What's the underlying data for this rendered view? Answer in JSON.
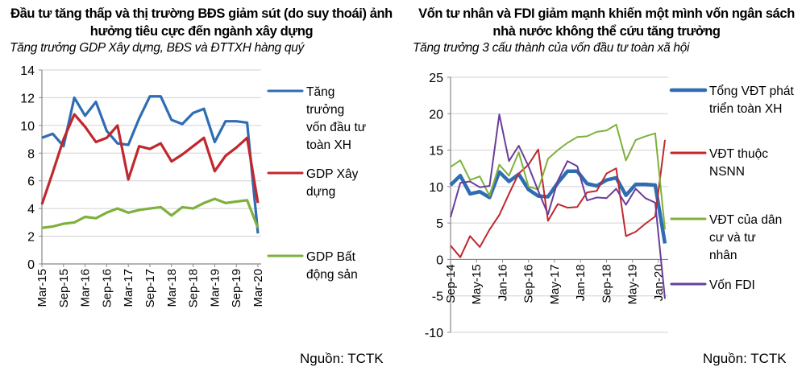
{
  "left": {
    "title": "Đầu tư tăng thấp và thị trường BĐS giảm sút (do suy thoái) ảnh hưởng tiêu cực đến ngành xây dựng",
    "subtitle": "Tăng trưởng GDP Xây dựng, BĐS và  ĐTTXH hàng quý",
    "source": "Nguồn: TCTK"
  },
  "right": {
    "title": "Vốn tư nhân và FDI giảm mạnh khiến một mình vốn ngân sách nhà nước không thể cứu tăng trưởng",
    "subtitle": "Tăng trưởng 3 cấu thành của vốn đầu tư toàn xã hội",
    "source": "Nguồn: TCTK"
  },
  "chart_data": [
    {
      "type": "line",
      "x": [
        "Mar-15",
        "Jun-15",
        "Sep-15",
        "Dec-15",
        "Mar-16",
        "Jun-16",
        "Sep-16",
        "Dec-16",
        "Mar-17",
        "Jun-17",
        "Sep-17",
        "Dec-17",
        "Mar-18",
        "Jun-18",
        "Sep-18",
        "Dec-18",
        "Mar-19",
        "Jun-19",
        "Sep-19",
        "Dec-19",
        "Mar-20"
      ],
      "tick_labels": [
        "Mar-15",
        "Sep-15",
        "Mar-16",
        "Sep-16",
        "Mar-17",
        "Sep-17",
        "Mar-18",
        "Sep-18",
        "Mar-19",
        "Sep-19",
        "Mar-20"
      ],
      "ylim": [
        0,
        14
      ],
      "yticks": [
        0,
        2,
        4,
        6,
        8,
        10,
        12,
        14
      ],
      "grid": true,
      "legend": "right",
      "series": [
        {
          "name": "Tăng trưởng vốn đầu tư toàn XH",
          "color": "#2e6db4",
          "values": [
            9.1,
            9.4,
            8.5,
            12.0,
            10.7,
            11.7,
            9.6,
            8.7,
            8.6,
            10.5,
            12.1,
            12.1,
            10.4,
            10.1,
            10.9,
            11.2,
            8.8,
            10.3,
            10.3,
            10.2,
            2.2
          ]
        },
        {
          "name": "GDP Xây dựng",
          "color": "#c0282e",
          "values": [
            4.3,
            6.6,
            9.0,
            10.8,
            9.9,
            8.8,
            9.1,
            10.0,
            6.1,
            8.5,
            8.3,
            8.7,
            7.4,
            7.9,
            8.5,
            9.1,
            6.7,
            7.8,
            8.4,
            9.1,
            4.4
          ]
        },
        {
          "name": "GDP Bất động sản",
          "color": "#7fb03c",
          "values": [
            2.6,
            2.7,
            2.9,
            3.0,
            3.4,
            3.3,
            3.7,
            4.0,
            3.7,
            3.9,
            4.0,
            4.1,
            3.5,
            4.1,
            4.0,
            4.4,
            4.7,
            4.4,
            4.5,
            4.6,
            2.6
          ]
        }
      ]
    },
    {
      "type": "line",
      "x": [
        "Sep-14",
        "Dec-14",
        "Mar-15",
        "Jun-15",
        "Sep-15",
        "Dec-15",
        "Mar-16",
        "Jun-16",
        "Sep-16",
        "Dec-16",
        "Mar-17",
        "Jun-17",
        "Sep-17",
        "Dec-17",
        "Mar-18",
        "Jun-18",
        "Sep-18",
        "Dec-18",
        "Mar-19",
        "Jun-19",
        "Sep-19",
        "Dec-19",
        "Mar-20"
      ],
      "tick_labels": [
        "Sep-14",
        "May-15",
        "Jan-16",
        "Sep-16",
        "May-17",
        "Jan-18",
        "Sep-18",
        "May-19",
        "Jan-20"
      ],
      "ylim": [
        -10,
        25
      ],
      "yticks": [
        -10,
        -5,
        0,
        5,
        10,
        15,
        20,
        25
      ],
      "grid": true,
      "legend": "right",
      "series": [
        {
          "name": "Tổng VĐT phát triển toàn XH",
          "color": "#2e6db4",
          "values": [
            10.2,
            11.5,
            9.0,
            9.3,
            8.5,
            12.0,
            10.7,
            11.7,
            9.6,
            8.7,
            8.6,
            10.5,
            12.1,
            12.1,
            10.4,
            10.1,
            10.9,
            11.2,
            8.8,
            10.3,
            10.3,
            10.2,
            2.2
          ]
        },
        {
          "name": "VĐT thuộc NSNN",
          "color": "#c0282e",
          "values": [
            1.9,
            0.3,
            3.2,
            1.7,
            4.1,
            6.1,
            9.0,
            11.8,
            13.0,
            15.1,
            5.3,
            7.6,
            7.1,
            7.2,
            9.2,
            9.4,
            11.8,
            12.5,
            3.2,
            3.8,
            4.9,
            5.9,
            16.4
          ]
        },
        {
          "name": "VĐT của dân cư và tư nhân",
          "color": "#7fb03c",
          "values": [
            12.7,
            13.6,
            10.9,
            11.4,
            8.7,
            13.0,
            11.5,
            14.7,
            10.0,
            9.6,
            13.8,
            15.0,
            16.0,
            16.8,
            16.9,
            17.5,
            17.7,
            18.5,
            13.6,
            16.4,
            16.9,
            17.3,
            4.1
          ]
        },
        {
          "name": "Vốn FDI",
          "color": "#6a3d9a",
          "values": [
            5.8,
            10.5,
            10.7,
            9.9,
            10.1,
            19.9,
            13.5,
            15.6,
            12.8,
            9.4,
            6.2,
            10.8,
            13.5,
            12.8,
            8.1,
            8.5,
            8.4,
            9.7,
            7.5,
            9.7,
            8.4,
            7.8,
            -5.4
          ]
        }
      ]
    }
  ]
}
